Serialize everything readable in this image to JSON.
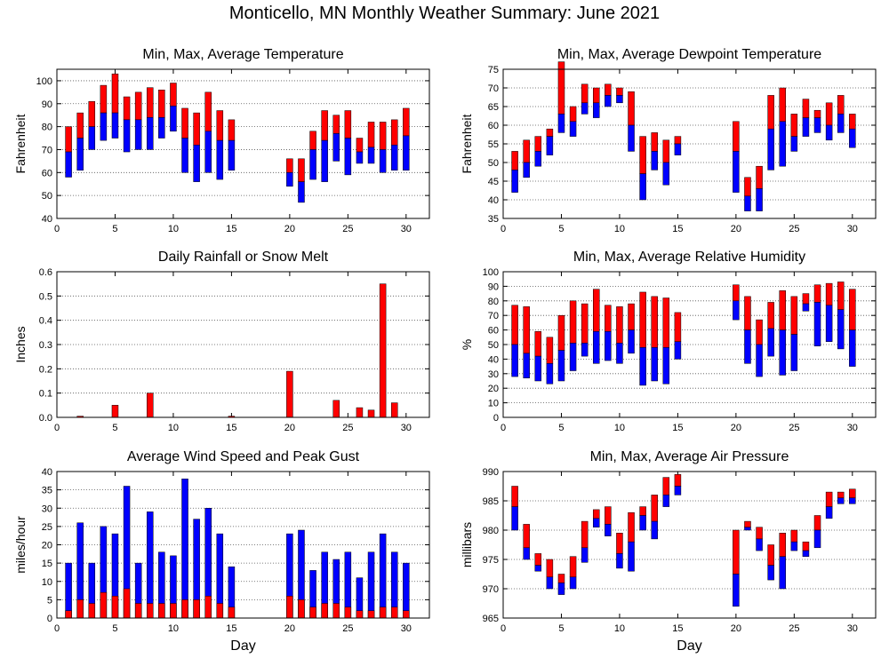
{
  "page": {
    "title": "Monticello, MN Monthly Weather Summary: June 2021"
  },
  "colors": {
    "high": "#ff0000",
    "low": "#0000ff",
    "avg_marker": "#f08080"
  },
  "chart_data": [
    {
      "type": "bar",
      "id": "temp",
      "title": "Min, Max, Average Temperature",
      "xlabel": "",
      "ylabel": "Fahrenheit",
      "ylim": [
        40,
        105
      ],
      "yticks": [
        40,
        50,
        60,
        70,
        80,
        90,
        100
      ],
      "xlim": [
        0,
        32
      ],
      "xticks": [
        0,
        5,
        10,
        15,
        20,
        25,
        30
      ],
      "grid": true,
      "days": [
        1,
        2,
        3,
        4,
        5,
        6,
        7,
        8,
        9,
        10,
        11,
        12,
        13,
        14,
        15,
        20,
        21,
        22,
        23,
        24,
        25,
        26,
        27,
        28,
        29,
        30
      ],
      "min": [
        58,
        61,
        70,
        74,
        75,
        69,
        70,
        70,
        75,
        78,
        60,
        56,
        60,
        57,
        61,
        54,
        47,
        57,
        56,
        65,
        59,
        64,
        64,
        60,
        61,
        61
      ],
      "avg": [
        69,
        75,
        80,
        86,
        86,
        83,
        83,
        84,
        84,
        89,
        75,
        72,
        78,
        74,
        74,
        60,
        56,
        70,
        74,
        77,
        75,
        69,
        71,
        70,
        72,
        76
      ],
      "max": [
        80,
        86,
        91,
        98,
        103,
        93,
        95,
        97,
        96,
        99,
        88,
        86,
        95,
        87,
        83,
        66,
        66,
        78,
        87,
        85,
        87,
        75,
        82,
        82,
        83,
        88
      ]
    },
    {
      "type": "bar",
      "id": "dewpoint",
      "title": "Min, Max, Average Dewpoint Temperature",
      "xlabel": "",
      "ylabel": "Fahrenheit",
      "ylim": [
        35,
        75
      ],
      "yticks": [
        35,
        40,
        45,
        50,
        55,
        60,
        65,
        70,
        75
      ],
      "xlim": [
        0,
        32
      ],
      "xticks": [
        0,
        5,
        10,
        15,
        20,
        25,
        30
      ],
      "grid": true,
      "days": [
        1,
        2,
        3,
        4,
        5,
        6,
        7,
        8,
        9,
        10,
        11,
        12,
        13,
        14,
        15,
        20,
        21,
        22,
        23,
        24,
        25,
        26,
        27,
        28,
        29,
        30
      ],
      "min": [
        42,
        46,
        49,
        52,
        58,
        57,
        63,
        62,
        65,
        66,
        53,
        40,
        48,
        44,
        52,
        42,
        37,
        37,
        48,
        49,
        53,
        57,
        58,
        56,
        58,
        54
      ],
      "avg": [
        48,
        50,
        53,
        57,
        63,
        61,
        66,
        66,
        68,
        68,
        60,
        47,
        53,
        50,
        55,
        53,
        41,
        43,
        59,
        61,
        57,
        62,
        62,
        60,
        63,
        59
      ],
      "max": [
        53,
        56,
        57,
        59,
        77,
        65,
        71,
        70,
        71,
        70,
        69,
        57,
        58,
        56,
        57,
        61,
        46,
        49,
        68,
        70,
        63,
        67,
        64,
        66,
        68,
        63
      ]
    },
    {
      "type": "bar",
      "id": "rain",
      "title": "Daily Rainfall or Snow Melt",
      "xlabel": "",
      "ylabel": "Inches",
      "ylim": [
        0,
        0.6
      ],
      "yticks": [
        0.0,
        0.1,
        0.2,
        0.3,
        0.4,
        0.5,
        0.6
      ],
      "ytick_labels": [
        "0.0",
        "0.1",
        "0.2",
        "0.3",
        "0.4",
        "0.5",
        "0.6"
      ],
      "xlim": [
        0,
        32
      ],
      "xticks": [
        0,
        5,
        10,
        15,
        20,
        25,
        30
      ],
      "grid": true,
      "days": [
        2,
        5,
        8,
        15,
        20,
        24,
        26,
        27,
        28,
        29
      ],
      "values": [
        0.005,
        0.05,
        0.1,
        0.005,
        0.19,
        0.07,
        0.04,
        0.03,
        0.55,
        0.06
      ]
    },
    {
      "type": "bar",
      "id": "humidity",
      "title": "Min, Max, Average Relative Humidity",
      "xlabel": "",
      "ylabel": "%",
      "ylim": [
        0,
        100
      ],
      "yticks": [
        0,
        10,
        20,
        30,
        40,
        50,
        60,
        70,
        80,
        90,
        100
      ],
      "xlim": [
        0,
        32
      ],
      "xticks": [
        0,
        5,
        10,
        15,
        20,
        25,
        30
      ],
      "grid": true,
      "days": [
        1,
        2,
        3,
        4,
        5,
        6,
        7,
        8,
        9,
        10,
        11,
        12,
        13,
        14,
        15,
        20,
        21,
        22,
        23,
        24,
        25,
        26,
        27,
        28,
        29,
        30
      ],
      "min": [
        28,
        27,
        25,
        23,
        25,
        32,
        42,
        37,
        39,
        37,
        44,
        22,
        25,
        23,
        40,
        67,
        37,
        28,
        42,
        29,
        32,
        73,
        49,
        52,
        47,
        35
      ],
      "avg": [
        50,
        44,
        42,
        37,
        46,
        51,
        51,
        59,
        59,
        51,
        60,
        48,
        48,
        48,
        52,
        80,
        60,
        50,
        61,
        60,
        57,
        78,
        79,
        77,
        74,
        60
      ],
      "max": [
        77,
        76,
        59,
        55,
        70,
        80,
        78,
        88,
        77,
        76,
        78,
        86,
        83,
        82,
        72,
        91,
        83,
        67,
        79,
        87,
        83,
        85,
        91,
        92,
        93,
        88
      ]
    },
    {
      "type": "bar",
      "id": "wind",
      "title": "Average Wind Speed and Peak Gust",
      "xlabel": "Day",
      "ylabel": "miles/hour",
      "ylim": [
        0,
        40
      ],
      "yticks": [
        0,
        5,
        10,
        15,
        20,
        25,
        30,
        35,
        40
      ],
      "xlim": [
        0,
        32
      ],
      "xticks": [
        0,
        5,
        10,
        15,
        20,
        25,
        30
      ],
      "grid": true,
      "days": [
        1,
        2,
        3,
        4,
        5,
        6,
        7,
        8,
        9,
        10,
        11,
        12,
        13,
        14,
        15,
        20,
        21,
        22,
        23,
        24,
        25,
        26,
        27,
        28,
        29,
        30
      ],
      "avg_speed": [
        2,
        5,
        4,
        7,
        6,
        8,
        4,
        4,
        4,
        4,
        5,
        5,
        6,
        4,
        3,
        6,
        5,
        3,
        4,
        4,
        3,
        2,
        2,
        3,
        3,
        2
      ],
      "peak_gust": [
        15,
        26,
        15,
        25,
        23,
        36,
        15,
        29,
        18,
        17,
        38,
        27,
        30,
        23,
        14,
        23,
        24,
        13,
        18,
        16,
        18,
        11,
        18,
        23,
        18,
        15
      ]
    },
    {
      "type": "bar",
      "id": "pressure",
      "title": "Min, Max, Average Air Pressure",
      "xlabel": "Day",
      "ylabel": "millibars",
      "ylim": [
        965,
        990
      ],
      "yticks": [
        965,
        970,
        975,
        980,
        985,
        990
      ],
      "xlim": [
        0,
        32
      ],
      "xticks": [
        0,
        5,
        10,
        15,
        20,
        25,
        30
      ],
      "grid": true,
      "days": [
        1,
        2,
        3,
        4,
        5,
        6,
        7,
        8,
        9,
        10,
        11,
        12,
        13,
        14,
        15,
        20,
        21,
        22,
        23,
        24,
        25,
        26,
        27,
        28,
        29,
        30
      ],
      "min": [
        980,
        975,
        973,
        970,
        969,
        970,
        974.5,
        980.5,
        979,
        973.5,
        973,
        980,
        978.5,
        984,
        986,
        967,
        980,
        976.5,
        971.5,
        970,
        976.5,
        975.5,
        977,
        982,
        984.5,
        984.5
      ],
      "avg": [
        984,
        977,
        974,
        972,
        971,
        972,
        977,
        982,
        981,
        976,
        978,
        982.5,
        981.5,
        986,
        987.5,
        972.5,
        980.5,
        978.5,
        974,
        975.5,
        978,
        976.5,
        980,
        984,
        985.5,
        985.5
      ],
      "max": [
        987.5,
        981,
        976,
        975,
        972.5,
        975.5,
        981.5,
        983.5,
        984,
        979.5,
        983,
        984,
        986,
        989,
        989.5,
        980,
        981.5,
        980.5,
        977.5,
        979.5,
        980,
        978,
        982.5,
        986.5,
        986.5,
        987
      ]
    }
  ]
}
